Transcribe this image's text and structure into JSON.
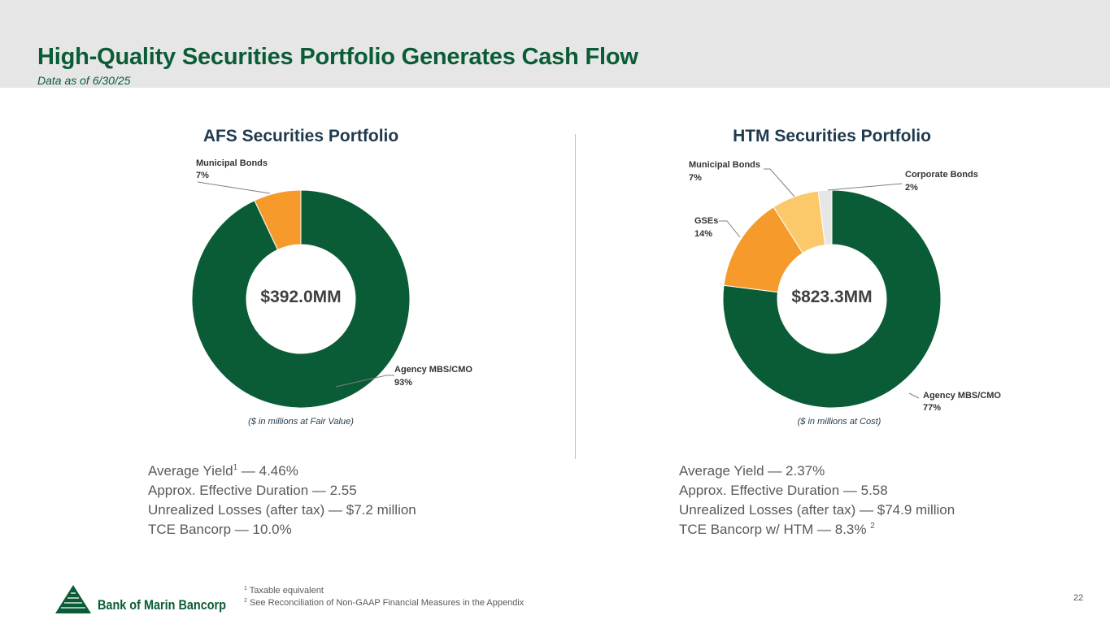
{
  "header": {
    "title": "High-Quality Securities Portfolio Generates Cash Flow",
    "subtitle": "Data as of 6/30/25"
  },
  "chart_data": [
    {
      "type": "pie",
      "variant": "donut",
      "title": "AFS Securities Portfolio",
      "center_label": "$392.0MM",
      "note": "($ in millions at Fair Value)",
      "slices": [
        {
          "name": "Agency MBS/CMO",
          "value": 93,
          "label": "93%",
          "color": "#0a5c36"
        },
        {
          "name": "Municipal Bonds",
          "value": 7,
          "label": "7%",
          "color": "#f59a2b"
        }
      ]
    },
    {
      "type": "pie",
      "variant": "donut",
      "title": "HTM Securities Portfolio",
      "center_label": "$823.3MM",
      "note": "($ in millions at Cost)",
      "slices": [
        {
          "name": "Agency MBS/CMO",
          "value": 77,
          "label": "77%",
          "color": "#0a5c36"
        },
        {
          "name": "GSEs",
          "value": 14,
          "label": "14%",
          "color": "#f59a2b"
        },
        {
          "name": "Municipal Bonds",
          "value": 7,
          "label": "7%",
          "color": "#fcc96a"
        },
        {
          "name": "Corporate Bonds",
          "value": 2,
          "label": "2%",
          "color": "#e6e6e6"
        }
      ]
    }
  ],
  "afs_stats": {
    "yield_label": "Average Yield",
    "yield_sup": "1",
    "yield_value": " — 4.46%",
    "duration": "Approx. Effective Duration — 2.55",
    "losses": "Unrealized Losses (after tax) — $7.2 million",
    "tce": "TCE Bancorp — 10.0%"
  },
  "htm_stats": {
    "yield": "Average Yield — 2.37%",
    "duration": "Approx. Effective Duration — 5.58",
    "losses": "Unrealized Losses (after tax) — $74.9 million",
    "tce": "TCE Bancorp w/ HTM — 8.3% ",
    "tce_sup": "2"
  },
  "footnotes": {
    "n1_mark": "1",
    "n1_text": " Taxable equivalent",
    "n2_mark": "2",
    "n2_text": " See Reconciliation of Non-GAAP Financial Measures in the Appendix"
  },
  "logo": {
    "name": "Bank of Marin Bancorp"
  },
  "page_number": "22",
  "colors": {
    "brand_green": "#0a5c36",
    "orange": "#f59a2b",
    "light_orange": "#fcc96a",
    "gray": "#e6e6e6",
    "header_bg": "#e6e6e6"
  }
}
